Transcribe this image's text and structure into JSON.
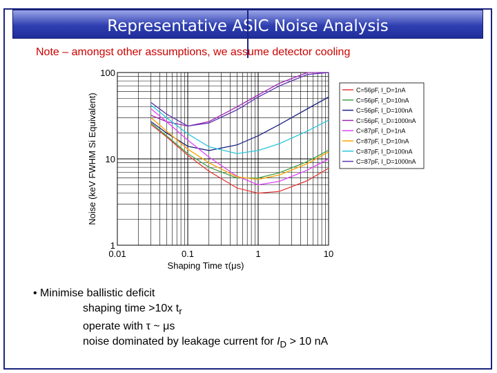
{
  "slide": {
    "title": "Representative ASIC Noise Analysis",
    "note": "Note – amongst other assumptions, we assume detector cooling",
    "bullets": {
      "main": "• Minimise ballistic deficit",
      "sub1": "shaping time >10x t",
      "sub1_sub": "r",
      "sub2": "operate with τ ~ μs",
      "sub3_pre": "noise dominated by leakage current for ",
      "sub3_var": "I",
      "sub3_sub": "D",
      "sub3_post": " > 10 nA"
    }
  },
  "colors": {
    "title_bg": "#2f3fb0",
    "note": "#cc0000",
    "frame": "#1a237e"
  },
  "chart_data": {
    "type": "line",
    "xscale": "log",
    "yscale": "log",
    "xlim": [
      0.01,
      10
    ],
    "ylim": [
      1,
      100
    ],
    "xlabel": "Shaping Time τ(μs)",
    "ylabel": "Noise (keV FWHM Si Equivalent)",
    "xticks": [
      "0.01",
      "0.1",
      "1",
      "10"
    ],
    "yticks": [
      "1",
      "10",
      "100"
    ],
    "grid": true,
    "legend_position": "right",
    "series": [
      {
        "name": "C=56pF, I_D=1nA",
        "color": "#e53935",
        "x": [
          0.03,
          0.05,
          0.1,
          0.2,
          0.5,
          1,
          2,
          5,
          10
        ],
        "y": [
          25,
          18,
          11,
          7.2,
          4.6,
          4.0,
          4.2,
          5.6,
          7.8
        ]
      },
      {
        "name": "C=56pF, I_D=10nA",
        "color": "#43a047",
        "x": [
          0.03,
          0.05,
          0.1,
          0.2,
          0.5,
          1,
          2,
          5,
          10
        ],
        "y": [
          26,
          18.5,
          11.5,
          8.0,
          6.0,
          6.0,
          6.9,
          9.3,
          12.6
        ]
      },
      {
        "name": "C=56pF, I_D=100nA",
        "color": "#1a237e",
        "x": [
          0.03,
          0.05,
          0.1,
          0.2,
          0.5,
          1,
          2,
          5,
          10
        ],
        "y": [
          27,
          20,
          14,
          12.5,
          14.5,
          18.5,
          25,
          38,
          52
        ]
      },
      {
        "name": "C=56pF, I_D=1000nA",
        "color": "#9c27b0",
        "x": [
          0.03,
          0.05,
          0.1,
          0.2,
          0.5,
          1,
          2,
          5,
          10
        ],
        "y": [
          32,
          27,
          24,
          27,
          40,
          55,
          75,
          100,
          100
        ]
      },
      {
        "name": "C=87pF, I_D=1nA",
        "color": "#e040fb",
        "x": [
          0.03,
          0.05,
          0.1,
          0.2,
          0.5,
          1,
          2,
          5,
          10
        ],
        "y": [
          38,
          27,
          16.5,
          10.5,
          6.3,
          5.0,
          5.5,
          7.4,
          10
        ]
      },
      {
        "name": "C=87pF, I_D=10nA",
        "color": "#ffa000",
        "x": [
          0.03,
          0.05,
          0.1,
          0.2,
          0.5,
          1,
          2,
          5,
          10
        ],
        "y": [
          30,
          21,
          13,
          9,
          6.2,
          5.8,
          6.5,
          8.8,
          12
        ]
      },
      {
        "name": "C=87pF, I_D=100nA",
        "color": "#26c6da",
        "x": [
          0.03,
          0.05,
          0.1,
          0.2,
          0.5,
          1,
          2,
          5,
          10
        ],
        "y": [
          42,
          30,
          19.5,
          13.8,
          11.5,
          12.5,
          15,
          21,
          28
        ]
      },
      {
        "name": "C=87pF, I_D=1000nA",
        "color": "#5e35b1",
        "x": [
          0.03,
          0.05,
          0.1,
          0.2,
          0.5,
          1,
          2,
          5,
          10
        ],
        "y": [
          45,
          33,
          24,
          26,
          37,
          52,
          70,
          95,
          100
        ]
      }
    ]
  }
}
